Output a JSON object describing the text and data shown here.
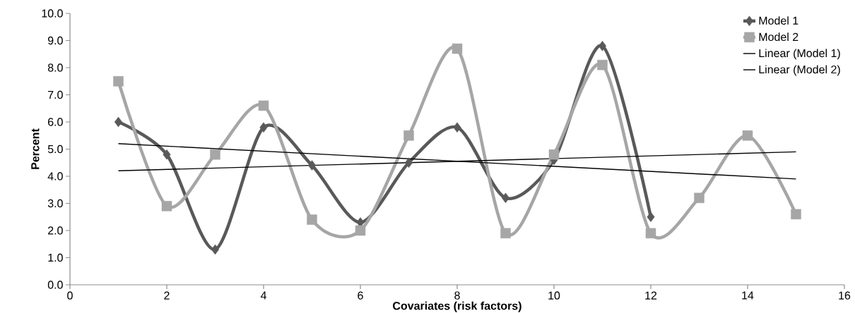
{
  "chart_data": {
    "type": "line",
    "xlabel": "Covariates (risk factors)",
    "ylabel": "Percent",
    "xlim": [
      0,
      16
    ],
    "xticks": [
      0,
      2,
      4,
      6,
      8,
      10,
      12,
      14,
      16
    ],
    "ylim": [
      0,
      10
    ],
    "yticks": [
      {
        "value": 0,
        "label": "0.0"
      },
      {
        "value": 1,
        "label": "1.0"
      },
      {
        "value": 2,
        "label": "2.0"
      },
      {
        "value": 3,
        "label": "3.0"
      },
      {
        "value": 4,
        "label": "4.0"
      },
      {
        "value": 5,
        "label": "5.0"
      },
      {
        "value": 6,
        "label": "6.0"
      },
      {
        "value": 7,
        "label": "7.0"
      },
      {
        "value": 8,
        "label": "8.0"
      },
      {
        "value": 9,
        "label": "9.0"
      },
      {
        "value": 10,
        "label": "10.0"
      }
    ],
    "grid": false,
    "legend": "top right",
    "series": [
      {
        "name": "Model 1",
        "color": "#595959",
        "marker": "diamond",
        "x": [
          1,
          2,
          3,
          4,
          5,
          6,
          7,
          8,
          9,
          10,
          11,
          12
        ],
        "values": [
          6.0,
          4.8,
          1.3,
          5.8,
          4.4,
          2.3,
          4.5,
          5.8,
          3.2,
          4.6,
          8.8,
          2.5
        ]
      },
      {
        "name": "Model 2",
        "color": "#a6a6a6",
        "marker": "square",
        "x": [
          1,
          2,
          3,
          4,
          5,
          6,
          7,
          8,
          9,
          10,
          11,
          12,
          13,
          14,
          15
        ],
        "values": [
          7.5,
          2.9,
          4.8,
          6.6,
          2.4,
          2.0,
          5.5,
          8.7,
          1.9,
          4.8,
          8.1,
          1.9,
          3.2,
          5.5,
          2.6
        ]
      },
      {
        "name": "Linear (Model 1)",
        "color": "#000000",
        "marker": "none",
        "x": [
          1,
          15
        ],
        "values": [
          4.2,
          4.9
        ]
      },
      {
        "name": "Linear (Model 2)",
        "color": "#000000",
        "marker": "none",
        "x": [
          1,
          15
        ],
        "values": [
          5.2,
          3.9
        ]
      }
    ]
  }
}
